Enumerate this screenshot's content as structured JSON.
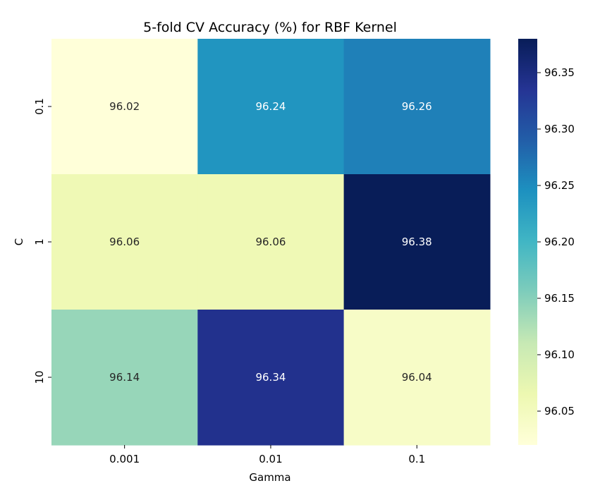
{
  "chart_data": {
    "type": "heatmap",
    "title": "5-fold CV Accuracy (%) for RBF Kernel",
    "xlabel": "Gamma",
    "ylabel": "C",
    "x_categories": [
      "0.001",
      "0.01",
      "0.1"
    ],
    "y_categories": [
      "0.1",
      "1",
      "10"
    ],
    "values": [
      [
        96.02,
        96.24,
        96.26
      ],
      [
        96.06,
        96.06,
        96.38
      ],
      [
        96.14,
        96.34,
        96.04
      ]
    ],
    "value_labels": [
      [
        "96.02",
        "96.24",
        "96.26"
      ],
      [
        "96.06",
        "96.06",
        "96.38"
      ],
      [
        "96.14",
        "96.34",
        "96.04"
      ]
    ],
    "colormap": "YlGnBu",
    "colorbar": {
      "vmin": 96.02,
      "vmax": 96.38,
      "ticks": [
        96.05,
        96.1,
        96.15,
        96.2,
        96.25,
        96.3,
        96.35
      ],
      "tick_labels": [
        "96.05",
        "96.10",
        "96.15",
        "96.20",
        "96.25",
        "96.30",
        "96.35"
      ]
    },
    "colors": {
      "dark_text": "#262626",
      "light_text": "#ffffff"
    }
  }
}
